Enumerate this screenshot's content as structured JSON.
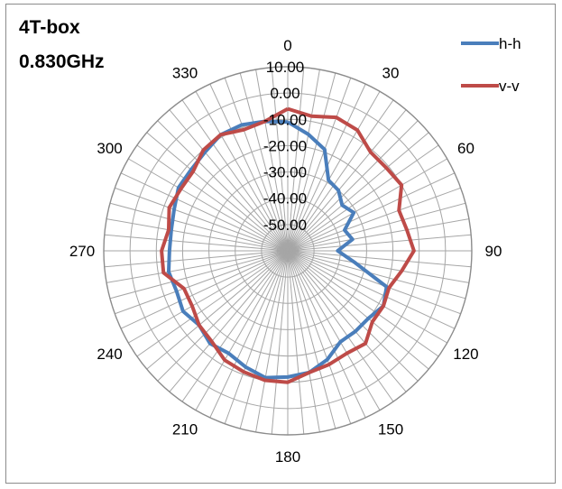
{
  "chart_data": {
    "type": "polar-line",
    "title_lines": [
      "4T-box",
      "0.830GHz"
    ],
    "radial_axis": {
      "min": -60,
      "max": 10,
      "grid_values": [
        10,
        0,
        -10,
        -20,
        -30,
        -40,
        -50,
        -60
      ],
      "tick_labels": [
        "10.00",
        "0.00",
        "-10.00",
        "-20.00",
        "-30.00",
        "-40.00",
        "-50.00"
      ]
    },
    "angular_axis": {
      "step_degrees": 5,
      "labels": [
        "0",
        "30",
        "60",
        "90",
        "120",
        "150",
        "180",
        "210",
        "240",
        "270",
        "300",
        "330"
      ],
      "direction": "clockwise",
      "zero_at": "top"
    },
    "legend": {
      "placement": "top-right"
    },
    "colors": {
      "h-h": "#4a7ebb",
      "v-v": "#be4b48",
      "grid": "#a6a6a6"
    },
    "angles": [
      0,
      10,
      20,
      30,
      40,
      50,
      60,
      70,
      80,
      90,
      100,
      110,
      120,
      130,
      140,
      150,
      160,
      170,
      180,
      190,
      200,
      210,
      220,
      230,
      240,
      250,
      260,
      270,
      280,
      290,
      300,
      310,
      320,
      330,
      340,
      350
    ],
    "series": [
      {
        "name": "h-h",
        "values": [
          -11,
          -15,
          -19,
          -29,
          -30,
          -33,
          -31,
          -37,
          -35,
          -41,
          -34,
          -20,
          -18,
          -20,
          -20,
          -20,
          -16,
          -13,
          -12,
          -11,
          -13,
          -15,
          -14,
          -16,
          -14,
          -15,
          -14,
          -15,
          -15,
          -14,
          -12,
          -12,
          -11,
          -9,
          -9,
          -10
        ]
      },
      {
        "name": "v-v",
        "values": [
          -6,
          -8,
          -6,
          -7,
          -11,
          -11,
          -10,
          -15,
          -14,
          -12,
          -16,
          -19,
          -18,
          -18,
          -14,
          -15,
          -14,
          -13,
          -10,
          -10,
          -11,
          -12,
          -15,
          -16,
          -18,
          -18,
          -12,
          -12,
          -14,
          -12,
          -13,
          -13,
          -10,
          -9,
          -11,
          -10
        ]
      }
    ]
  }
}
